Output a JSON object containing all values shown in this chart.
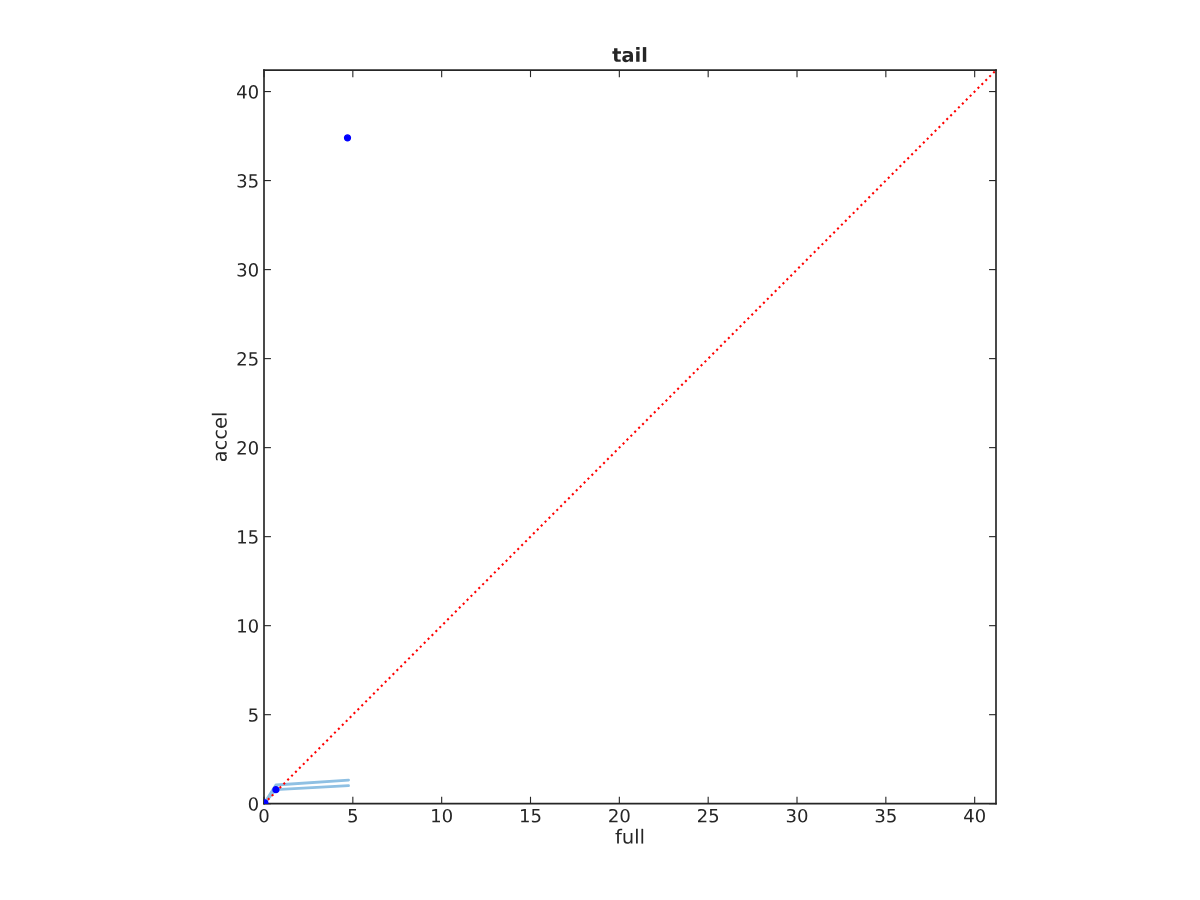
{
  "chart_data": {
    "type": "scatter",
    "title": "tail",
    "xlabel": "full",
    "ylabel": "accel",
    "xlim": [
      0,
      41.2
    ],
    "ylim": [
      0,
      41.2
    ],
    "xticks": [
      0,
      5,
      10,
      15,
      20,
      25,
      30,
      35,
      40
    ],
    "yticks": [
      0,
      5,
      10,
      15,
      20,
      25,
      30,
      35,
      40
    ],
    "grid": false,
    "series": [
      {
        "type": "line",
        "color": "#8fc0e3",
        "x": [
          0,
          0.67,
          4.76
        ],
        "values": [
          0,
          1.05,
          1.33
        ],
        "marker": "none"
      },
      {
        "type": "line",
        "color": "#8fc0e3",
        "x": [
          0,
          0.67,
          4.76
        ],
        "values": [
          0,
          0.79,
          1.01
        ],
        "marker": "none"
      },
      {
        "type": "line",
        "color": "#ff0000",
        "x": [
          0,
          41.2
        ],
        "values": [
          0,
          41.2
        ],
        "marker": "none",
        "line_style": "dotted"
      },
      {
        "color": "#0000ff",
        "marker": "circle",
        "x": [
          0,
          0.05,
          0.67,
          4.7
        ],
        "values": [
          0,
          0.05,
          0.79,
          37.4
        ]
      }
    ]
  }
}
